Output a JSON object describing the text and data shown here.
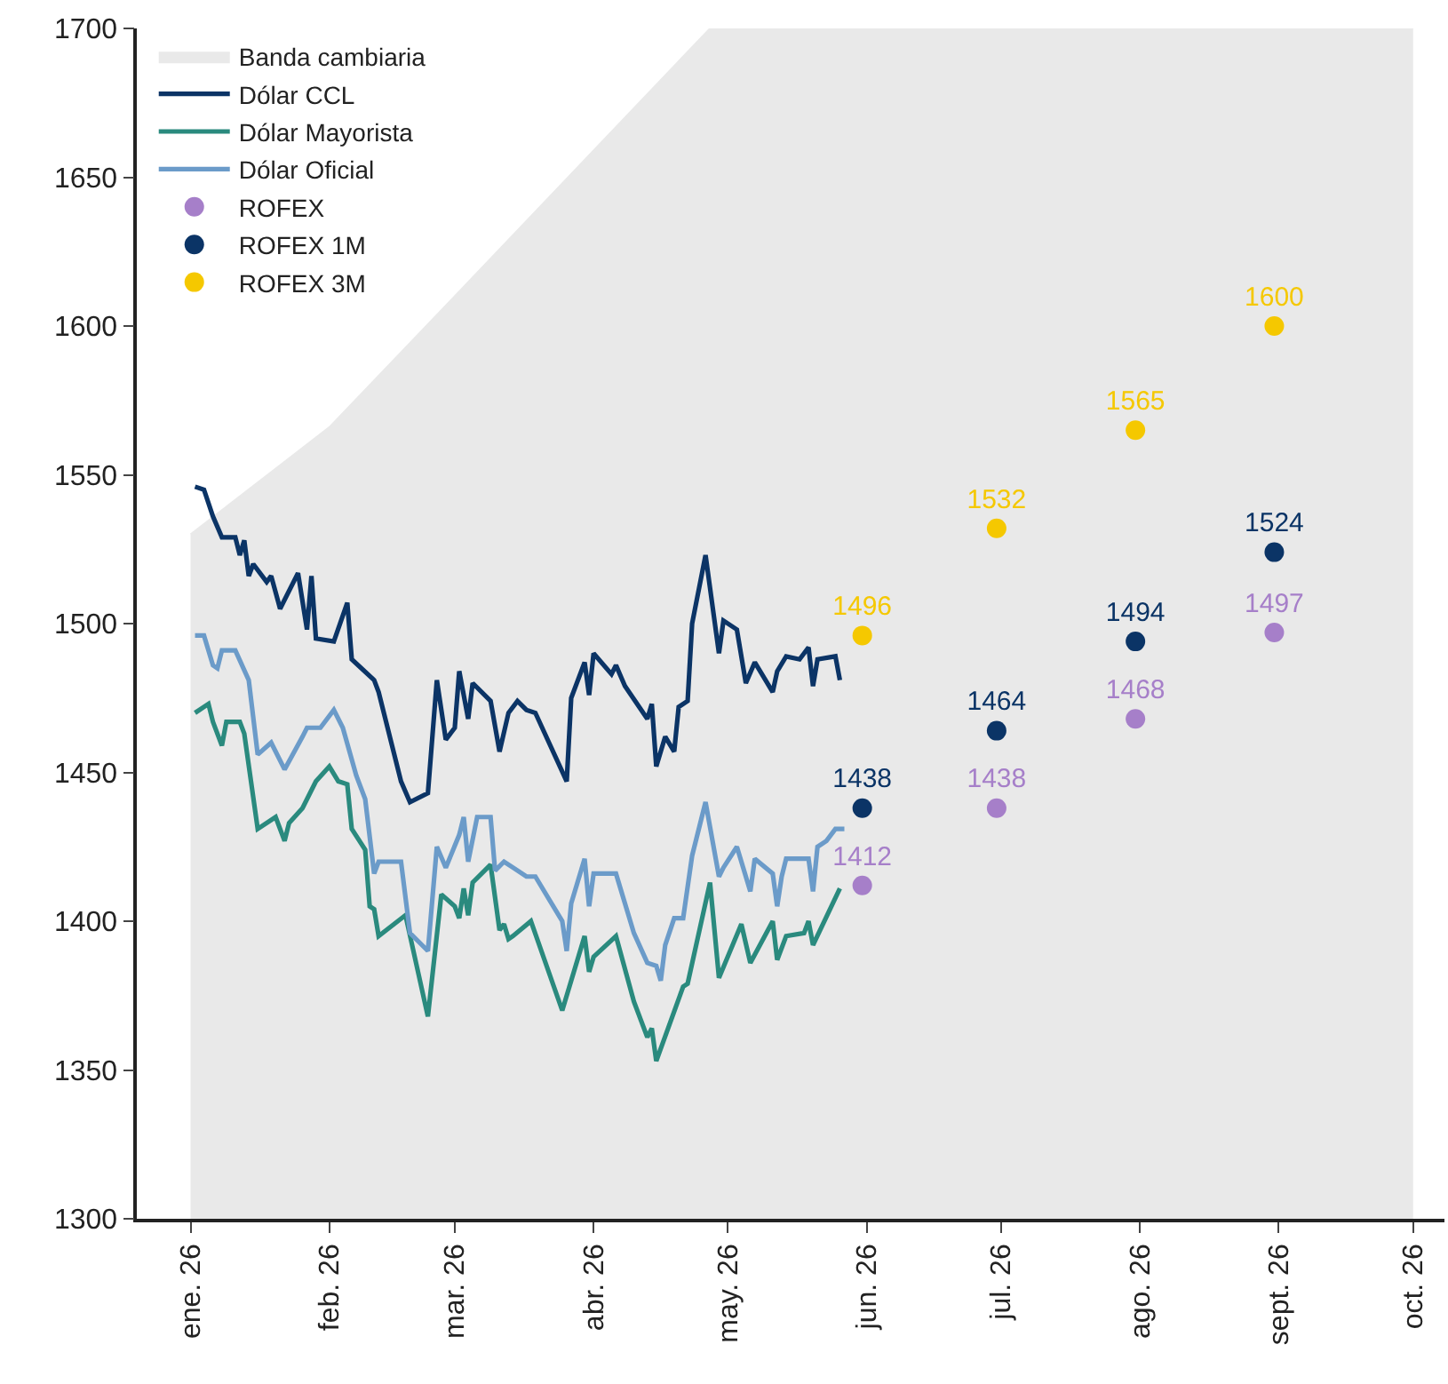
{
  "chart_data": {
    "type": "line",
    "xlim": [
      "2025-12-20",
      "2026-10-08"
    ],
    "xticks": [
      {
        "value": "2026-01-01",
        "label": "ene. 26"
      },
      {
        "value": "2026-02-01",
        "label": "feb. 26"
      },
      {
        "value": "2026-03-01",
        "label": "mar. 26"
      },
      {
        "value": "2026-04-01",
        "label": "abr. 26"
      },
      {
        "value": "2026-05-01",
        "label": "may. 26"
      },
      {
        "value": "2026-06-01",
        "label": "jun. 26"
      },
      {
        "value": "2026-07-01",
        "label": "jul. 26"
      },
      {
        "value": "2026-08-01",
        "label": "ago. 26"
      },
      {
        "value": "2026-09-01",
        "label": "sept. 26"
      },
      {
        "value": "2026-10-01",
        "label": "oct. 26"
      }
    ],
    "ylim": [
      1300,
      1700
    ],
    "yticks": [
      1300,
      1350,
      1400,
      1450,
      1500,
      1550,
      1600,
      1650,
      1700
    ],
    "legend": "top left",
    "series": [
      {
        "type": "area",
        "name": "Banda cambiaria",
        "color": "#e9e9e9",
        "x": [
          "2026-01-01",
          "2026-02-01",
          "2026-03-01",
          "2026-04-01",
          "2026-04-27",
          "2026-10-01"
        ],
        "values": [
          1530,
          1566,
          1610,
          1659,
          1700,
          1700
        ]
      },
      {
        "name": "Dólar CCL",
        "color": "#0b3466",
        "x": [
          "2026-01-02",
          "2026-01-04",
          "2026-01-06",
          "2026-01-08",
          "2026-01-11",
          "2026-01-12",
          "2026-01-13",
          "2026-01-14",
          "2026-01-15",
          "2026-01-18",
          "2026-01-19",
          "2026-01-21",
          "2026-01-25",
          "2026-01-27",
          "2026-01-28",
          "2026-01-29",
          "2026-02-02",
          "2026-02-05",
          "2026-02-06",
          "2026-02-11",
          "2026-02-12",
          "2026-02-17",
          "2026-02-19",
          "2026-02-23",
          "2026-02-25",
          "2026-02-27",
          "2026-03-01",
          "2026-03-02",
          "2026-03-04",
          "2026-03-05",
          "2026-03-09",
          "2026-03-11",
          "2026-03-13",
          "2026-03-15",
          "2026-03-17",
          "2026-03-19",
          "2026-03-26",
          "2026-03-27",
          "2026-03-30",
          "2026-03-31",
          "2026-04-01",
          "2026-04-05",
          "2026-04-06",
          "2026-04-08",
          "2026-04-13",
          "2026-04-14",
          "2026-04-15",
          "2026-04-17",
          "2026-04-19",
          "2026-04-20",
          "2026-04-22",
          "2026-04-23",
          "2026-04-26",
          "2026-04-29",
          "2026-04-30",
          "2026-05-03",
          "2026-05-05",
          "2026-05-07",
          "2026-05-11",
          "2026-05-12",
          "2026-05-14",
          "2026-05-17",
          "2026-05-19",
          "2026-05-20",
          "2026-05-21",
          "2026-05-25",
          "2026-05-26"
        ],
        "values": [
          1546,
          1545,
          1536,
          1529,
          1529,
          1523,
          1528,
          1516,
          1520,
          1514,
          1516,
          1505,
          1517,
          1498,
          1516,
          1495,
          1494,
          1507,
          1488,
          1481,
          1477,
          1447,
          1440,
          1443,
          1481,
          1461,
          1465,
          1484,
          1468,
          1480,
          1474,
          1457,
          1470,
          1474,
          1471,
          1470,
          1447,
          1475,
          1487,
          1476,
          1490,
          1483,
          1486,
          1479,
          1468,
          1473,
          1452,
          1462,
          1457,
          1472,
          1474,
          1500,
          1523,
          1490,
          1501,
          1498,
          1480,
          1487,
          1477,
          1484,
          1489,
          1488,
          1492,
          1479,
          1488,
          1489,
          1481
        ]
      },
      {
        "name": "Dólar Mayorista",
        "color": "#2a8a7e",
        "x": [
          "2026-01-02",
          "2026-01-05",
          "2026-01-06",
          "2026-01-08",
          "2026-01-09",
          "2026-01-12",
          "2026-01-13",
          "2026-01-16",
          "2026-01-20",
          "2026-01-22",
          "2026-01-23",
          "2026-01-26",
          "2026-01-29",
          "2026-02-01",
          "2026-02-03",
          "2026-02-05",
          "2026-02-06",
          "2026-02-09",
          "2026-02-10",
          "2026-02-11",
          "2026-02-12",
          "2026-02-18",
          "2026-02-23",
          "2026-02-26",
          "2026-03-01",
          "2026-03-02",
          "2026-03-03",
          "2026-03-04",
          "2026-03-05",
          "2026-03-09",
          "2026-03-11",
          "2026-03-12",
          "2026-03-13",
          "2026-03-14",
          "2026-03-18",
          "2026-03-25",
          "2026-03-30",
          "2026-03-31",
          "2026-04-01",
          "2026-04-06",
          "2026-04-10",
          "2026-04-13",
          "2026-04-14",
          "2026-04-15",
          "2026-04-21",
          "2026-04-22",
          "2026-04-27",
          "2026-04-29",
          "2026-05-04",
          "2026-05-06",
          "2026-05-11",
          "2026-05-12",
          "2026-05-14",
          "2026-05-18",
          "2026-05-19",
          "2026-05-20",
          "2026-05-26"
        ],
        "values": [
          1470,
          1473,
          1467,
          1459,
          1467,
          1467,
          1463,
          1431,
          1435,
          1427,
          1433,
          1438,
          1447,
          1452,
          1447,
          1446,
          1431,
          1424,
          1405,
          1404,
          1395,
          1402,
          1368,
          1409,
          1405,
          1401,
          1411,
          1402,
          1413,
          1419,
          1397,
          1399,
          1394,
          1395,
          1400,
          1370,
          1395,
          1383,
          1388,
          1395,
          1373,
          1361,
          1364,
          1353,
          1378,
          1379,
          1413,
          1381,
          1399,
          1386,
          1400,
          1387,
          1395,
          1396,
          1400,
          1392,
          1411
        ]
      },
      {
        "name": "Dólar Oficial",
        "color": "#6b9bc9",
        "x": [
          "2026-01-02",
          "2026-01-04",
          "2026-01-06",
          "2026-01-07",
          "2026-01-08",
          "2026-01-11",
          "2026-01-14",
          "2026-01-16",
          "2026-01-19",
          "2026-01-22",
          "2026-01-26",
          "2026-01-27",
          "2026-01-30",
          "2026-02-02",
          "2026-02-04",
          "2026-02-07",
          "2026-02-09",
          "2026-02-11",
          "2026-02-12",
          "2026-02-17",
          "2026-02-19",
          "2026-02-23",
          "2026-02-25",
          "2026-02-27",
          "2026-03-02",
          "2026-03-03",
          "2026-03-04",
          "2026-03-06",
          "2026-03-09",
          "2026-03-10",
          "2026-03-12",
          "2026-03-14",
          "2026-03-17",
          "2026-03-19",
          "2026-03-25",
          "2026-03-26",
          "2026-03-27",
          "2026-03-30",
          "2026-03-31",
          "2026-04-01",
          "2026-04-06",
          "2026-04-10",
          "2026-04-13",
          "2026-04-15",
          "2026-04-16",
          "2026-04-17",
          "2026-04-19",
          "2026-04-21",
          "2026-04-23",
          "2026-04-26",
          "2026-04-29",
          "2026-04-30",
          "2026-05-03",
          "2026-05-06",
          "2026-05-07",
          "2026-05-11",
          "2026-05-12",
          "2026-05-13",
          "2026-05-14",
          "2026-05-19",
          "2026-05-20",
          "2026-05-21",
          "2026-05-23",
          "2026-05-25",
          "2026-05-27"
        ],
        "values": [
          1496,
          1496,
          1486,
          1485,
          1491,
          1491,
          1481,
          1456,
          1460,
          1451,
          1462,
          1465,
          1465,
          1471,
          1465,
          1449,
          1441,
          1416,
          1420,
          1420,
          1396,
          1390,
          1425,
          1418,
          1429,
          1435,
          1420,
          1435,
          1435,
          1417,
          1420,
          1418,
          1415,
          1415,
          1400,
          1390,
          1406,
          1421,
          1405,
          1416,
          1416,
          1396,
          1386,
          1385,
          1380,
          1392,
          1401,
          1401,
          1422,
          1440,
          1415,
          1418,
          1425,
          1410,
          1421,
          1416,
          1405,
          1415,
          1421,
          1421,
          1410,
          1425,
          1427,
          1431,
          1431
        ]
      },
      {
        "type": "scatter",
        "name": "ROFEX",
        "color": "#a67fc9",
        "marker": "circle",
        "x": [
          "2026-05-31",
          "2026-06-30",
          "2026-07-31",
          "2026-08-31"
        ],
        "values": [
          1412,
          1438,
          1468,
          1497
        ],
        "value_labels": [
          "1412",
          "1438",
          "1468",
          "1497"
        ]
      },
      {
        "type": "scatter",
        "name": "ROFEX 1M",
        "color": "#0b3466",
        "marker": "circle",
        "x": [
          "2026-05-31",
          "2026-06-30",
          "2026-07-31",
          "2026-08-31"
        ],
        "values": [
          1438,
          1464,
          1494,
          1524
        ],
        "value_labels": [
          "1438",
          "1464",
          "1494",
          "1524"
        ]
      },
      {
        "type": "scatter",
        "name": "ROFEX 3M",
        "color": "#f5c800",
        "marker": "circle",
        "x": [
          "2026-05-31",
          "2026-06-30",
          "2026-07-31",
          "2026-08-31"
        ],
        "values": [
          1496,
          1532,
          1565,
          1600
        ],
        "value_labels": [
          "1496",
          "1532",
          "1565",
          "1600"
        ]
      }
    ]
  }
}
